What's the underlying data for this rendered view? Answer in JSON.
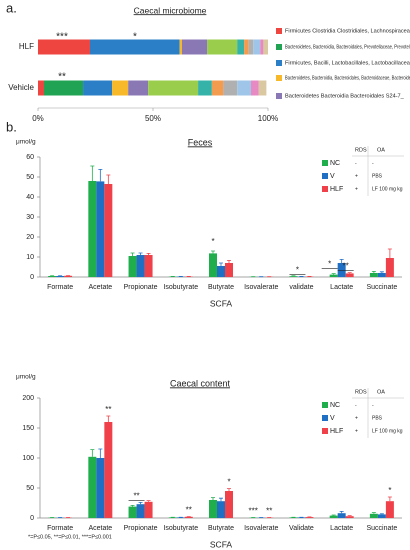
{
  "chart_data": [
    {
      "type": "stacked_bar",
      "panel_label": "a.",
      "title": "Caecal microbiome",
      "categories": [
        "HLF",
        "Vehicle"
      ],
      "xlim": [
        0,
        100
      ],
      "xticks": [
        {
          "value": 0,
          "label": "0%"
        },
        {
          "value": 50,
          "label": "50%"
        },
        {
          "value": 100,
          "label": "100%"
        }
      ],
      "annotations": [
        "***",
        "*",
        "**"
      ],
      "series": [
        {
          "name": "Firmicutes Clostridia Clostridiales, Lachnospiraceae",
          "color": "#ee4540",
          "values": [
            22.6,
            2.6
          ]
        },
        {
          "name": "Bacteroidetes, Bacteroidia, Bacteroidales, Prevotellaceae, Prevotella",
          "color": "#21a354",
          "values": [
            0,
            17
          ]
        },
        {
          "name": "Firmicutes, Bacilli, Lactobacillales, Lactobacillaceae",
          "color": "#2a7fc6",
          "values": [
            39,
            12.6
          ]
        },
        {
          "name": "Bacteroidetes, Bacteroidia, Bacteroidales, Bacteroidaceae, Bacteroides",
          "color": "#f7b82a",
          "values": [
            1,
            7
          ]
        },
        {
          "name": "Bacteroidetes Bacteroidia Bacteroidales S24-7_",
          "color": "#8a78b4",
          "values": [
            11,
            8.7
          ]
        },
        {
          "color": "#9acd4c",
          "values": [
            13,
            21.7
          ]
        },
        {
          "color": "#36b3a8",
          "values": [
            3,
            6
          ]
        },
        {
          "color": "#f39c50",
          "values": [
            2,
            5
          ]
        },
        {
          "color": "#b0b0b0",
          "values": [
            2,
            6
          ]
        },
        {
          "color": "#9fc6e8",
          "values": [
            3,
            6
          ]
        },
        {
          "color": "#e78ac3",
          "values": [
            1.4,
            3.4
          ]
        },
        {
          "color": "#d9c8a0",
          "values": [
            2,
            3.3
          ]
        }
      ]
    },
    {
      "type": "bar",
      "panel_label": "b.",
      "title": "Feces",
      "y_label": "μmol/g",
      "x_label": "SCFA",
      "categories": [
        "Formate",
        "Acetate",
        "Propionate",
        "Isobutyrate",
        "Butyrate",
        "Isovalerate",
        "validate",
        "Lactate",
        "Succinate"
      ],
      "ylim": [
        0,
        60
      ],
      "yticks": [
        0,
        10,
        20,
        30,
        40,
        50,
        60
      ],
      "annotations": [
        "*",
        "*",
        "*",
        "**"
      ],
      "legend_table": {
        "columns": [
          "RDS",
          "OA"
        ],
        "rows": [
          [
            "-",
            "-"
          ],
          [
            "+",
            "PBS"
          ],
          [
            "+",
            "LF 100 mg kg"
          ]
        ]
      },
      "series": [
        {
          "name": "NC",
          "color": "#1fae4b",
          "values": [
            0.5,
            48,
            10.5,
            0.2,
            11.8,
            0.1,
            0.4,
            1.2,
            2
          ],
          "errors": [
            0.1,
            7.5,
            1.5,
            0.1,
            1.2,
            0.05,
            0.2,
            0.5,
            0.8
          ]
        },
        {
          "name": "V",
          "color": "#1f6fc5",
          "values": [
            0.5,
            47.8,
            11,
            0.2,
            5.5,
            0.1,
            0.2,
            7,
            2
          ],
          "errors": [
            0.1,
            6,
            1,
            0.1,
            1.5,
            0.05,
            0.1,
            1.8,
            0.6
          ]
        },
        {
          "name": "HLF",
          "color": "#f0404a",
          "values": [
            0.6,
            46.5,
            11,
            0.2,
            7,
            0.1,
            0.2,
            1.8,
            9.5
          ],
          "errors": [
            0.1,
            4.5,
            0.8,
            0.1,
            1.3,
            0.05,
            0.1,
            0.4,
            4.5
          ]
        }
      ]
    },
    {
      "type": "bar",
      "title": "Caecal content",
      "y_label": "μmol/g",
      "x_label": "SCFA",
      "footnote": "*=P≤0.05, **=P≤0.01, ***=P≤0.001",
      "categories": [
        "Formate",
        "Acetate",
        "Propionate",
        "Isobutyrate",
        "Butyrate",
        "Isovalerate",
        "Validate",
        "Lactate",
        "Succinate"
      ],
      "ylim": [
        0,
        200
      ],
      "yticks": [
        0,
        50,
        100,
        150,
        200
      ],
      "annotations": [
        "**",
        "**",
        "**",
        "*",
        "***",
        "**",
        "*"
      ],
      "legend_table": {
        "columns": [
          "RDS",
          "OA"
        ],
        "rows": [
          [
            "-",
            "-"
          ],
          [
            "+",
            "PBS"
          ],
          [
            "+",
            "LF 100 mg kg"
          ]
        ]
      },
      "series": [
        {
          "name": "NC",
          "color": "#1fae4b",
          "values": [
            0.5,
            102,
            19,
            1,
            30,
            0.5,
            1,
            4,
            7
          ],
          "errors": [
            0.2,
            12,
            2,
            0.3,
            4,
            0.2,
            0.3,
            1,
            2
          ]
        },
        {
          "name": "V",
          "color": "#1f6fc5",
          "values": [
            0.5,
            100,
            23,
            1,
            28,
            0.5,
            1,
            8,
            6
          ],
          "errors": [
            0.2,
            15,
            3,
            0.3,
            5,
            0.2,
            0.3,
            3,
            1
          ]
        },
        {
          "name": "HLF",
          "color": "#f0404a",
          "values": [
            0.5,
            160,
            27,
            2,
            45,
            0.5,
            1.5,
            3,
            28
          ],
          "errors": [
            0.2,
            10,
            2,
            0.3,
            4,
            0.2,
            0.3,
            1,
            7
          ]
        }
      ]
    }
  ]
}
